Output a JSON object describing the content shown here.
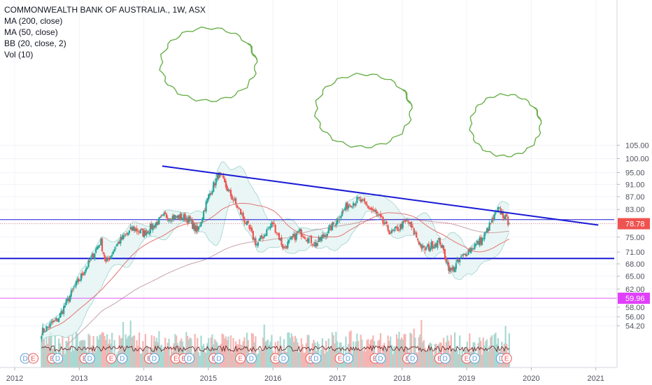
{
  "legend": {
    "title": "COMMONWEALTH BANK OF AUSTRALIA., 1W, ASX",
    "studies": [
      "MA (200, close)",
      "MA (50, close)",
      "BB (20, close, 2)",
      "Vol (10)"
    ]
  },
  "colors": {
    "up": "#26a69a",
    "down": "#ef5350",
    "trendline": "#1a1ad6",
    "ma200": "#c7a3a8",
    "ma50": "#e57373",
    "bb_fill": "#e3f4f2",
    "bb_line": "#9fd3cc",
    "annotation": "#6ab04c",
    "price_label": "#ef5350",
    "marker_line": "#e040fb",
    "earnings_badge": "#ef5350",
    "dividend_badge": "#5b9bd5"
  },
  "price_labels": {
    "last": "78.78",
    "marker": "59.96"
  },
  "chart_data": {
    "type": "candlestick",
    "title": "COMMONWEALTH BANK OF AUSTRALIA., 1W, ASX",
    "x_axis": {
      "type": "date",
      "range": [
        "2012-01-01",
        "2021-07-01"
      ],
      "ticks": [
        "2012",
        "2013",
        "2014",
        "2015",
        "2016",
        "2017",
        "2018",
        "2019",
        "2020",
        "2021"
      ]
    },
    "y_axis": {
      "scale": "log",
      "range": [
        53.3,
        106
      ],
      "ticks": [
        "105.00",
        "100.00",
        "95.00",
        "91.00",
        "87.00",
        "83.00",
        "78.78",
        "75.00",
        "71.00",
        "68.00",
        "65.00",
        "62.00",
        "59.96",
        "58.00",
        "56.00",
        "54.20"
      ]
    },
    "price_path": [
      {
        "date": "2012-06-01",
        "price": 53.0
      },
      {
        "date": "2012-09-01",
        "price": 55.5
      },
      {
        "date": "2012-12-01",
        "price": 62.0
      },
      {
        "date": "2013-03-01",
        "price": 68.5
      },
      {
        "date": "2013-05-01",
        "price": 74.0
      },
      {
        "date": "2013-06-01",
        "price": 68.0
      },
      {
        "date": "2013-08-01",
        "price": 73.0
      },
      {
        "date": "2013-11-01",
        "price": 77.5
      },
      {
        "date": "2014-01-01",
        "price": 76.0
      },
      {
        "date": "2014-05-01",
        "price": 81.0
      },
      {
        "date": "2014-09-01",
        "price": 80.5
      },
      {
        "date": "2014-11-01",
        "price": 76.5
      },
      {
        "date": "2015-01-01",
        "price": 87.0
      },
      {
        "date": "2015-03-01",
        "price": 94.5
      },
      {
        "date": "2015-05-01",
        "price": 88.0
      },
      {
        "date": "2015-08-01",
        "price": 79.0
      },
      {
        "date": "2015-10-01",
        "price": 73.0
      },
      {
        "date": "2016-01-01",
        "price": 79.0
      },
      {
        "date": "2016-03-01",
        "price": 72.0
      },
      {
        "date": "2016-06-01",
        "price": 76.5
      },
      {
        "date": "2016-09-01",
        "price": 73.0
      },
      {
        "date": "2016-12-01",
        "price": 78.0
      },
      {
        "date": "2017-03-01",
        "price": 84.5
      },
      {
        "date": "2017-05-01",
        "price": 86.0
      },
      {
        "date": "2017-08-01",
        "price": 82.0
      },
      {
        "date": "2017-11-01",
        "price": 76.0
      },
      {
        "date": "2018-02-01",
        "price": 79.5
      },
      {
        "date": "2018-05-01",
        "price": 71.5
      },
      {
        "date": "2018-08-01",
        "price": 74.0
      },
      {
        "date": "2018-10-01",
        "price": 66.0
      },
      {
        "date": "2019-01-01",
        "price": 71.0
      },
      {
        "date": "2019-04-01",
        "price": 74.5
      },
      {
        "date": "2019-07-01",
        "price": 83.0
      },
      {
        "date": "2019-09-01",
        "price": 78.8
      }
    ],
    "horizontal_lines": [
      {
        "price": 79.96
      },
      {
        "price": 69.35
      },
      {
        "price": 59.96
      }
    ],
    "trendlines": [
      {
        "from": {
          "date": "2014-04-15",
          "price": 97.3
        },
        "to": {
          "date": "2021-01-15",
          "price": 78.4
        }
      }
    ],
    "events": [
      {
        "date": "2012-03-01",
        "kind": "D"
      },
      {
        "date": "2012-04-15",
        "kind": "E"
      },
      {
        "date": "2012-08-01",
        "kind": "E"
      },
      {
        "date": "2012-09-01",
        "kind": "D"
      },
      {
        "date": "2013-02-01",
        "kind": "E"
      },
      {
        "date": "2013-03-01",
        "kind": "D"
      },
      {
        "date": "2013-07-01",
        "kind": "E"
      },
      {
        "date": "2013-09-01",
        "kind": "D"
      },
      {
        "date": "2014-02-01",
        "kind": "E"
      },
      {
        "date": "2014-03-01",
        "kind": "D"
      },
      {
        "date": "2014-07-01",
        "kind": "E"
      },
      {
        "date": "2014-08-15",
        "kind": "E"
      },
      {
        "date": "2014-09-15",
        "kind": "D"
      },
      {
        "date": "2015-02-01",
        "kind": "E"
      },
      {
        "date": "2015-03-01",
        "kind": "D"
      },
      {
        "date": "2015-07-01",
        "kind": "E"
      },
      {
        "date": "2015-09-01",
        "kind": "D"
      },
      {
        "date": "2016-01-15",
        "kind": "E"
      },
      {
        "date": "2016-03-01",
        "kind": "D"
      },
      {
        "date": "2016-08-01",
        "kind": "E"
      },
      {
        "date": "2016-09-01",
        "kind": "D"
      },
      {
        "date": "2017-01-15",
        "kind": "E"
      },
      {
        "date": "2017-03-01",
        "kind": "D"
      },
      {
        "date": "2017-08-01",
        "kind": "E"
      },
      {
        "date": "2017-09-01",
        "kind": "D"
      },
      {
        "date": "2018-02-01",
        "kind": "E"
      },
      {
        "date": "2018-03-01",
        "kind": "D"
      },
      {
        "date": "2018-08-01",
        "kind": "E"
      },
      {
        "date": "2018-09-01",
        "kind": "D"
      },
      {
        "date": "2019-01-01",
        "kind": "E"
      },
      {
        "date": "2019-02-15",
        "kind": "D"
      },
      {
        "date": "2019-07-15",
        "kind": "D"
      },
      {
        "date": "2019-08-15",
        "kind": "E"
      }
    ],
    "volume": {
      "panel": "bottom",
      "relative": true
    },
    "grid": true
  }
}
